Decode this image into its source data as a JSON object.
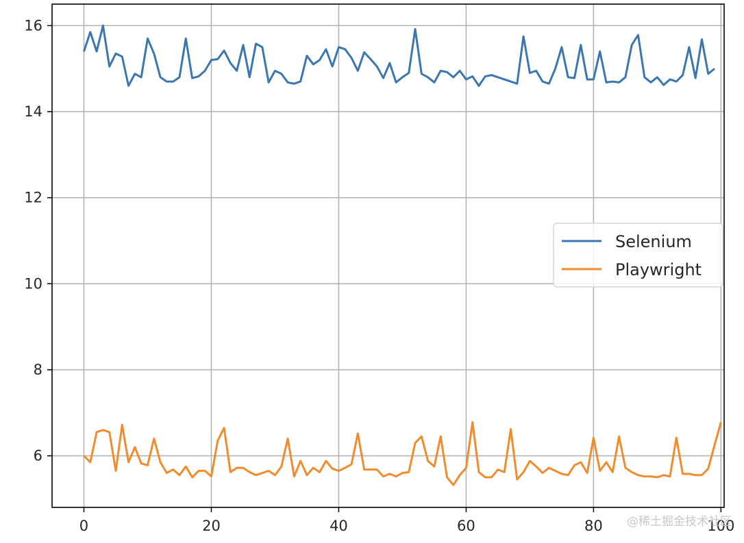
{
  "chart_data": {
    "type": "line",
    "title": "",
    "xlabel": "",
    "ylabel": "",
    "xlim": [
      -5,
      100.5
    ],
    "ylim": [
      4.8,
      16.5
    ],
    "xticks": [
      0,
      20,
      40,
      60,
      80,
      100
    ],
    "yticks": [
      6,
      8,
      10,
      12,
      14,
      16
    ],
    "grid": true,
    "legend_position": "center-right",
    "series": [
      {
        "name": "Selenium",
        "color": "#3a76b0",
        "x": [
          0,
          1,
          2,
          3,
          4,
          5,
          6,
          7,
          8,
          9,
          10,
          11,
          12,
          13,
          14,
          15,
          16,
          17,
          18,
          19,
          20,
          21,
          22,
          23,
          24,
          25,
          26,
          27,
          28,
          29,
          30,
          31,
          32,
          33,
          34,
          35,
          36,
          37,
          38,
          39,
          40,
          41,
          42,
          43,
          44,
          45,
          46,
          47,
          48,
          49,
          50,
          51,
          52,
          53,
          54,
          55,
          56,
          57,
          58,
          59,
          60,
          61,
          62,
          63,
          64,
          65,
          66,
          67,
          68,
          69,
          70,
          71,
          72,
          73,
          74,
          75,
          76,
          77,
          78,
          79,
          80,
          81,
          82,
          83,
          84,
          85,
          86,
          87,
          88,
          89,
          90,
          91,
          92,
          93,
          94,
          95,
          96,
          97,
          98,
          99
        ],
        "values": [
          15.4,
          15.85,
          15.4,
          16.0,
          15.05,
          15.35,
          15.28,
          14.6,
          14.88,
          14.8,
          15.7,
          15.35,
          14.8,
          14.7,
          14.7,
          14.8,
          15.7,
          14.78,
          14.82,
          14.95,
          15.2,
          15.22,
          15.42,
          15.13,
          14.95,
          15.55,
          14.8,
          15.58,
          15.5,
          14.68,
          14.95,
          14.88,
          14.68,
          14.65,
          14.7,
          15.3,
          15.1,
          15.2,
          15.45,
          15.05,
          15.5,
          15.45,
          15.25,
          14.95,
          15.38,
          15.22,
          15.05,
          14.78,
          15.13,
          14.68,
          14.8,
          14.9,
          15.92,
          14.88,
          14.8,
          14.68,
          14.95,
          14.92,
          14.8,
          14.95,
          14.75,
          14.82,
          14.6,
          14.82,
          14.85,
          14.8,
          14.75,
          14.7,
          14.65,
          15.75,
          14.9,
          14.95,
          14.7,
          14.65,
          15.0,
          15.5,
          14.8,
          14.78,
          15.55,
          14.75,
          14.75,
          15.4,
          14.68,
          14.7,
          14.68,
          14.8,
          15.55,
          15.78,
          14.8,
          14.68,
          14.8,
          14.62,
          14.75,
          14.7,
          14.85,
          15.5,
          14.78,
          15.68,
          14.88,
          15.0
        ]
      },
      {
        "name": "Playwright",
        "color": "#f08c2e",
        "x": [
          0,
          1,
          2,
          3,
          4,
          5,
          6,
          7,
          8,
          9,
          10,
          11,
          12,
          13,
          14,
          15,
          16,
          17,
          18,
          19,
          20,
          21,
          22,
          23,
          24,
          25,
          26,
          27,
          28,
          29,
          30,
          31,
          32,
          33,
          34,
          35,
          36,
          37,
          38,
          39,
          40,
          41,
          42,
          43,
          44,
          45,
          46,
          47,
          48,
          49,
          50,
          51,
          52,
          53,
          54,
          55,
          56,
          57,
          58,
          59,
          60,
          61,
          62,
          63,
          64,
          65,
          66,
          67,
          68,
          69,
          70,
          71,
          72,
          73,
          74,
          75,
          76,
          77,
          78,
          79,
          80,
          81,
          82,
          83,
          84,
          85,
          86,
          87,
          88,
          89,
          90,
          91,
          92,
          93,
          94,
          95,
          96,
          97,
          98,
          99,
          100
        ],
        "values": [
          6.0,
          5.85,
          6.55,
          6.6,
          6.55,
          5.65,
          6.72,
          5.85,
          6.2,
          5.82,
          5.78,
          6.4,
          5.85,
          5.6,
          5.68,
          5.55,
          5.75,
          5.5,
          5.65,
          5.65,
          5.52,
          6.35,
          6.65,
          5.62,
          5.72,
          5.72,
          5.62,
          5.55,
          5.6,
          5.65,
          5.55,
          5.75,
          6.4,
          5.52,
          5.88,
          5.55,
          5.72,
          5.62,
          5.88,
          5.7,
          5.65,
          5.72,
          5.8,
          6.52,
          5.68,
          5.68,
          5.68,
          5.52,
          5.58,
          5.52,
          5.6,
          5.62,
          6.3,
          6.45,
          5.88,
          5.75,
          6.45,
          5.5,
          5.32,
          5.55,
          5.72,
          6.78,
          5.62,
          5.5,
          5.5,
          5.68,
          5.62,
          6.62,
          5.45,
          5.62,
          5.88,
          5.75,
          5.6,
          5.72,
          5.65,
          5.58,
          5.55,
          5.78,
          5.85,
          5.6,
          6.42,
          5.65,
          5.85,
          5.62,
          6.45,
          5.72,
          5.62,
          5.55,
          5.52,
          5.52,
          5.5,
          5.55,
          5.52,
          6.42,
          5.58,
          5.58,
          5.55,
          5.55,
          5.7,
          6.25,
          6.78
        ]
      }
    ]
  },
  "watermark": "@稀土掘金技术社区"
}
